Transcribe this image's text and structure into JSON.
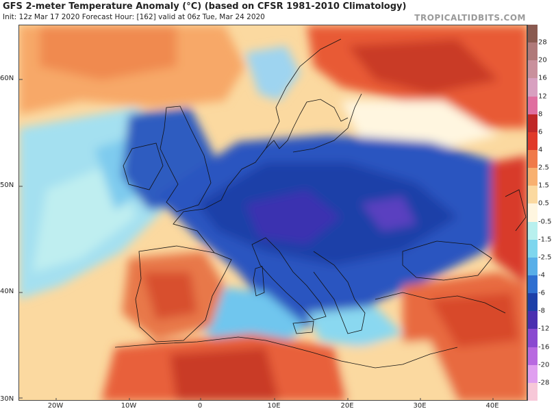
{
  "header": {
    "title": "GFS 2-meter Temperature Anomaly (°C) (based on CFSR 1981-2010 Climatology)",
    "subtitle": "Init: 12z Mar 17 2020   Forecast Hour: [162]   valid at 06z Tue, Mar 24 2020",
    "brand": "TROPICALTIDBITS.COM"
  },
  "map": {
    "lat_labels": [
      "60N",
      "50N",
      "40N",
      "30N"
    ],
    "lon_labels": [
      "20W",
      "10W",
      "0",
      "10E",
      "20E",
      "30E",
      "40E"
    ]
  },
  "colorbar": {
    "labels": [
      "28",
      "20",
      "16",
      "12",
      "8",
      "6",
      "4",
      "2.5",
      "1.5",
      "0.5",
      "-0.5",
      "-1.5",
      "-2.5",
      "-4",
      "-6",
      "-8",
      "-12",
      "-16",
      "-20",
      "-28"
    ],
    "colors": [
      "#8a5a50",
      "#b07a7a",
      "#c9909c",
      "#d8a0c0",
      "#e06fa0",
      "#c02828",
      "#e03a2a",
      "#f07a4a",
      "#f8b070",
      "#fbd9a0",
      "#fff6e0",
      "#b8f0ee",
      "#7ed6ee",
      "#58aee8",
      "#2f6fd0",
      "#1d3fa8",
      "#4a2fb0",
      "#8a4ad0",
      "#b86ae0",
      "#e0a0f0",
      "#f7c8d8"
    ]
  }
}
